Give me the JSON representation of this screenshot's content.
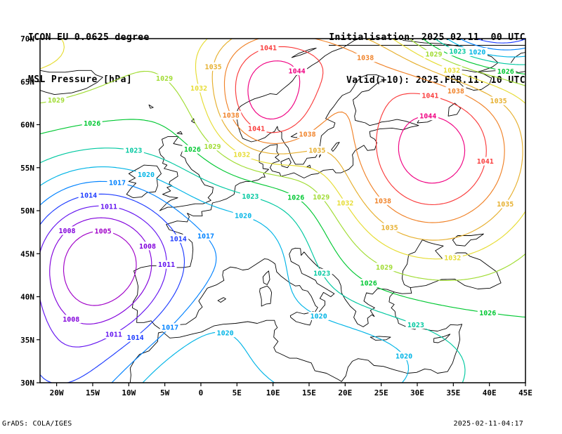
{
  "header": {
    "model_line": "ICON EU 0.0625 degree",
    "field_line": "MSL Pressure [hPa]",
    "init_line": "Initialisation: 2025.02.11. 00 UTC",
    "valid_line": "Valid(+10): 2025.FEB.11. 10 UTC"
  },
  "footer": {
    "left": "GrADS: COLA/IGES",
    "right": "2025-02-11-04:17"
  },
  "chart_data": {
    "type": "contour",
    "field": "Mean sea level pressure",
    "unit": "hPa",
    "contour_interval": 3,
    "x_axis": {
      "kind": "longitude",
      "range_deg": [
        -22.3,
        45
      ],
      "ticks": [
        {
          "label": "20W",
          "deg": -20
        },
        {
          "label": "15W",
          "deg": -15
        },
        {
          "label": "10W",
          "deg": -10
        },
        {
          "label": "5W",
          "deg": -5
        },
        {
          "label": "0",
          "deg": 0
        },
        {
          "label": "5E",
          "deg": 5
        },
        {
          "label": "10E",
          "deg": 10
        },
        {
          "label": "15E",
          "deg": 15
        },
        {
          "label": "20E",
          "deg": 20
        },
        {
          "label": "25E",
          "deg": 25
        },
        {
          "label": "30E",
          "deg": 30
        },
        {
          "label": "35E",
          "deg": 35
        },
        {
          "label": "40E",
          "deg": 40
        },
        {
          "label": "45E",
          "deg": 45
        }
      ]
    },
    "y_axis": {
      "kind": "latitude",
      "range_deg": [
        30,
        70
      ],
      "ticks": [
        {
          "label": "70N",
          "deg": 70
        },
        {
          "label": "65N",
          "deg": 65
        },
        {
          "label": "60N",
          "deg": 60
        },
        {
          "label": "55N",
          "deg": 55
        },
        {
          "label": "50N",
          "deg": 50
        },
        {
          "label": "45N",
          "deg": 45
        },
        {
          "label": "40N",
          "deg": 40
        },
        {
          "label": "35N",
          "deg": 35
        },
        {
          "label": "30N",
          "deg": 30
        }
      ]
    },
    "levels": [
      {
        "value": 1005,
        "color": "#A000C8"
      },
      {
        "value": 1008,
        "color": "#8200DC"
      },
      {
        "value": 1011,
        "color": "#6414F0"
      },
      {
        "value": 1014,
        "color": "#1E3CFF"
      },
      {
        "value": 1017,
        "color": "#0082FF"
      },
      {
        "value": 1020,
        "color": "#00B4E6"
      },
      {
        "value": 1023,
        "color": "#00C8A0"
      },
      {
        "value": 1026,
        "color": "#00C832"
      },
      {
        "value": 1029,
        "color": "#A0DC32"
      },
      {
        "value": 1032,
        "color": "#E6DC32"
      },
      {
        "value": 1035,
        "color": "#E6AF2D"
      },
      {
        "value": 1038,
        "color": "#F08228"
      },
      {
        "value": 1041,
        "color": "#FA3C3C"
      },
      {
        "value": 1044,
        "color": "#F00082"
      }
    ],
    "pressure_centers": [
      {
        "type": "low",
        "innermost_labeled_contour_hpa": 1005,
        "lon_deg": -14,
        "lat_deg": 44,
        "region": "Atlantic west of Iberia"
      },
      {
        "type": "high",
        "innermost_labeled_contour_hpa": 1044,
        "lon_deg": 9,
        "lat_deg": 62,
        "region": "southern Norway"
      },
      {
        "type": "high",
        "innermost_labeled_contour_hpa": 1044,
        "lon_deg": 31.5,
        "lat_deg": 57.5,
        "region": "northwest Russia"
      }
    ],
    "field_estimate": {
      "base_hpa": 1026,
      "gaussians": [
        [
          -24,
          -14,
          140,
          44,
          90
        ],
        [
          -10,
          -21,
          150,
          30,
          80
        ],
        [
          -7,
          8,
          120,
          46,
          100
        ],
        [
          -8,
          20,
          300,
          32,
          60
        ],
        [
          17,
          9,
          60,
          62,
          50
        ],
        [
          20,
          32,
          200,
          57,
          140
        ],
        [
          9,
          15,
          250,
          68.5,
          30
        ],
        [
          7,
          -26,
          300,
          69,
          60
        ],
        [
          -22,
          40,
          120,
          72.5,
          35
        ]
      ]
    }
  }
}
